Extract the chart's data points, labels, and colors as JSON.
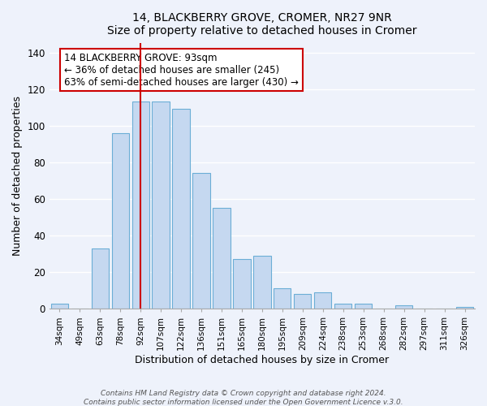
{
  "title": "14, BLACKBERRY GROVE, CROMER, NR27 9NR",
  "subtitle": "Size of property relative to detached houses in Cromer",
  "xlabel": "Distribution of detached houses by size in Cromer",
  "ylabel": "Number of detached properties",
  "bar_labels": [
    "34sqm",
    "49sqm",
    "63sqm",
    "78sqm",
    "92sqm",
    "107sqm",
    "122sqm",
    "136sqm",
    "151sqm",
    "165sqm",
    "180sqm",
    "195sqm",
    "209sqm",
    "224sqm",
    "238sqm",
    "253sqm",
    "268sqm",
    "282sqm",
    "297sqm",
    "311sqm",
    "326sqm"
  ],
  "bar_values": [
    3,
    0,
    33,
    96,
    113,
    113,
    109,
    74,
    55,
    27,
    29,
    11,
    8,
    9,
    3,
    3,
    0,
    2,
    0,
    0,
    1
  ],
  "bar_color": "#c5d8f0",
  "bar_edgecolor": "#6baed6",
  "ylim": [
    0,
    145
  ],
  "vline_bin_index": 4,
  "annotation_line1": "14 BLACKBERRY GROVE: 93sqm",
  "annotation_line2": "← 36% of detached houses are smaller (245)",
  "annotation_line3": "63% of semi-detached houses are larger (430) →",
  "annotation_box_edgecolor": "#cc0000",
  "vline_color": "#cc0000",
  "footer1": "Contains HM Land Registry data © Crown copyright and database right 2024.",
  "footer2": "Contains public sector information licensed under the Open Government Licence v.3.0.",
  "background_color": "#eef2fb",
  "grid_color": "#ffffff",
  "title_fontsize": 10,
  "subtitle_fontsize": 9,
  "ylabel_fontsize": 9,
  "xlabel_fontsize": 9,
  "tick_fontsize": 7.5,
  "annotation_fontsize": 8.5
}
